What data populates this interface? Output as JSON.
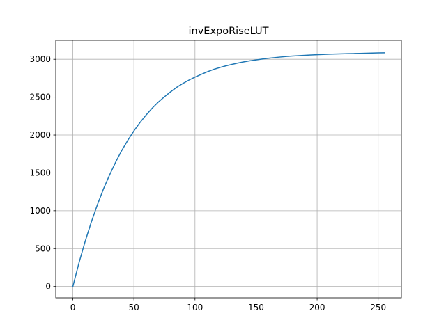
{
  "chart_data": {
    "type": "line",
    "title": "invExpoRiseLUT",
    "xlabel": "",
    "ylabel": "",
    "xlim": [
      -14,
      269
    ],
    "ylim": [
      -150,
      3250
    ],
    "x_ticks": [
      0,
      50,
      100,
      150,
      200,
      250
    ],
    "y_ticks": [
      0,
      500,
      1000,
      1500,
      2000,
      2500,
      3000
    ],
    "grid": true,
    "legend": "none",
    "series": [
      {
        "color": "#1f77b4",
        "x": [
          0,
          5,
          10,
          15,
          20,
          25,
          30,
          35,
          40,
          45,
          50,
          55,
          60,
          65,
          70,
          75,
          80,
          85,
          90,
          95,
          100,
          105,
          110,
          115,
          120,
          125,
          130,
          135,
          140,
          145,
          150,
          155,
          160,
          165,
          170,
          175,
          180,
          185,
          190,
          195,
          200,
          205,
          210,
          215,
          220,
          225,
          230,
          235,
          240,
          245,
          250,
          255
        ],
        "y": [
          0,
          310,
          590,
          845,
          1075,
          1285,
          1470,
          1640,
          1795,
          1930,
          2055,
          2165,
          2265,
          2355,
          2435,
          2505,
          2570,
          2630,
          2680,
          2725,
          2765,
          2800,
          2835,
          2865,
          2890,
          2912,
          2932,
          2950,
          2966,
          2980,
          2992,
          3003,
          3013,
          3022,
          3030,
          3037,
          3043,
          3048,
          3053,
          3057,
          3061,
          3064,
          3067,
          3070,
          3072,
          3074,
          3076,
          3078,
          3080,
          3082,
          3084,
          3086
        ]
      }
    ]
  },
  "colors": {
    "line": "#1f77b4",
    "grid": "#b0b0b0",
    "axes": "#000000",
    "background": "#ffffff"
  }
}
